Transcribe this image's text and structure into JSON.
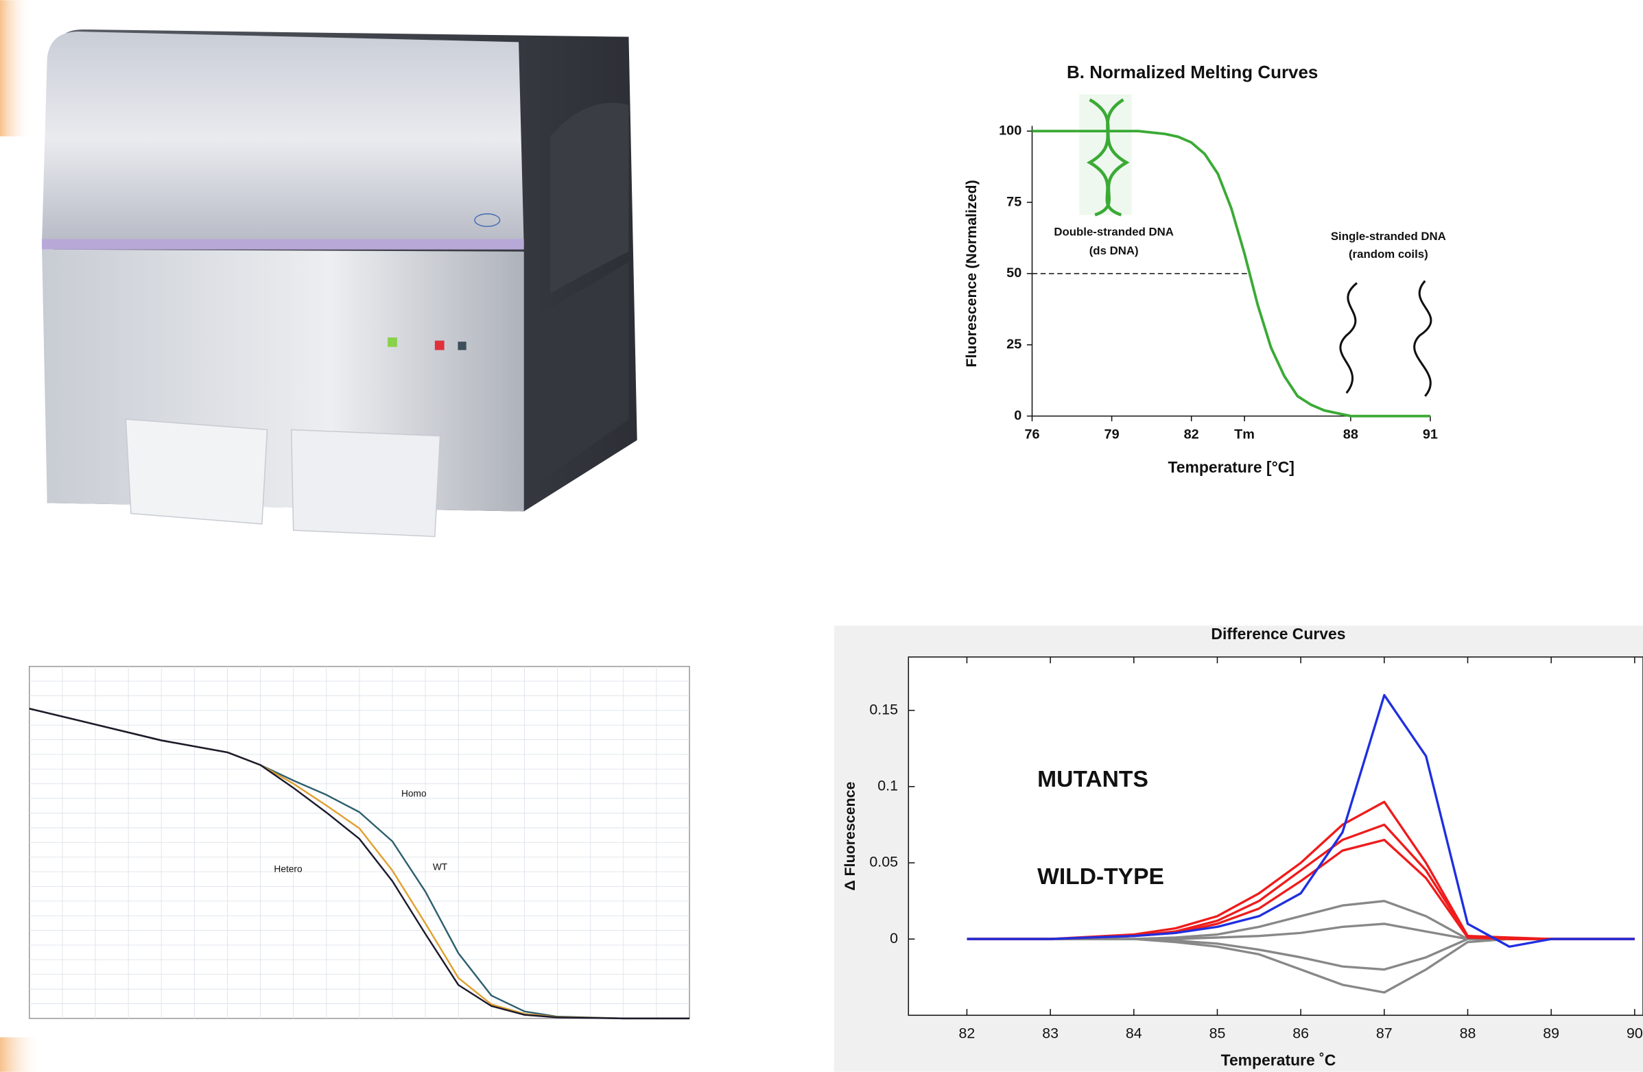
{
  "chart_data": [
    {
      "type": "line",
      "title": "B.  Normalized Melting Curves",
      "y_label": "Fluorescence (Normalized)",
      "x_label": "Temperature  [°C]",
      "x": [
        76,
        77,
        78,
        79,
        80,
        81,
        81.5,
        82,
        82.5,
        83,
        83.5,
        84,
        84.5,
        85,
        85.5,
        86,
        86.5,
        87,
        87.5,
        88,
        89,
        90,
        91
      ],
      "series": [
        {
          "color": "#3aaa35",
          "values": [
            100,
            100,
            100,
            100,
            100,
            99,
            98,
            96,
            92,
            85,
            73,
            57,
            39,
            24,
            14,
            7,
            4,
            2,
            1,
            0,
            0,
            0,
            0
          ]
        }
      ],
      "xlim": [
        76,
        91
      ],
      "ylim": [
        0,
        100
      ],
      "xticks": [
        76,
        79,
        82,
        {
          "value": 84,
          "label": "Tm"
        },
        88,
        91
      ],
      "yticks": [
        0,
        25,
        50,
        75,
        100
      ],
      "reference_line": 50,
      "annotations": [
        "Double-stranded DNA",
        "(ds DNA)",
        "Single-stranded DNA",
        "(random coils)"
      ]
    },
    {
      "type": "line",
      "x": [
        0,
        10,
        20,
        30,
        35,
        40,
        45,
        50,
        55,
        60,
        65,
        70,
        75,
        80,
        90,
        100
      ],
      "series": [
        {
          "color": "#2d5f6e",
          "values": [
            88,
            83.5,
            79,
            75.6,
            72,
            67.6,
            63.5,
            58.6,
            50.3,
            36,
            18.5,
            6.5,
            2,
            0.5,
            0,
            0
          ]
        },
        {
          "color": "#e0a030",
          "values": [
            88,
            83.5,
            79,
            75.6,
            72,
            66.7,
            60.5,
            54,
            42,
            27,
            11.5,
            4,
            1.3,
            0.4,
            0,
            0
          ]
        },
        {
          "color": "#1a1a2e",
          "values": [
            88,
            83.5,
            79,
            75.6,
            72,
            65.5,
            58.5,
            51,
            39,
            24,
            9.5,
            3.5,
            1,
            0.3,
            0,
            0
          ]
        }
      ],
      "xlim": [
        0,
        100
      ],
      "ylim": [
        0,
        100
      ],
      "grid": true,
      "annotations": [
        "Homo",
        "Hetero",
        "WT"
      ]
    },
    {
      "type": "line",
      "title": "Difference Curves",
      "y_label": "Δ Fluorescence",
      "x_label": "Temperature ˚C",
      "x": [
        82,
        83,
        84,
        84.5,
        85,
        85.5,
        86,
        86.5,
        87,
        87.5,
        88,
        88.5,
        89,
        90
      ],
      "series": [
        {
          "color": "#888888",
          "values": [
            0,
            0,
            0,
            0.001,
            0.003,
            0.008,
            0.015,
            0.022,
            0.025,
            0.015,
            0,
            0,
            0,
            0
          ]
        },
        {
          "color": "#888888",
          "values": [
            0,
            0,
            0,
            0,
            0.001,
            0.002,
            0.004,
            0.008,
            0.01,
            0.005,
            0,
            0,
            0,
            0
          ]
        },
        {
          "color": "#888888",
          "values": [
            0,
            0,
            0,
            -0.001,
            -0.003,
            -0.007,
            -0.012,
            -0.018,
            -0.02,
            -0.012,
            0,
            0,
            0,
            0
          ]
        },
        {
          "color": "#888888",
          "values": [
            0,
            0,
            0,
            -0.002,
            -0.005,
            -0.01,
            -0.02,
            -0.03,
            -0.035,
            -0.02,
            -0.002,
            0,
            0,
            0
          ]
        },
        {
          "color": "#ee1c1c",
          "values": [
            0,
            0,
            0.003,
            0.007,
            0.015,
            0.03,
            0.05,
            0.075,
            0.09,
            0.05,
            0.002,
            0.001,
            0,
            0
          ]
        },
        {
          "color": "#ee1c1c",
          "values": [
            0,
            0,
            0.002,
            0.005,
            0.012,
            0.025,
            0.045,
            0.065,
            0.075,
            0.045,
            0.002,
            0,
            0,
            0
          ]
        },
        {
          "color": "#ee1c1c",
          "values": [
            0,
            0,
            0.002,
            0.004,
            0.01,
            0.02,
            0.038,
            0.058,
            0.065,
            0.04,
            0.001,
            0,
            0,
            0
          ]
        },
        {
          "color": "#1f2fe0",
          "values": [
            0,
            0,
            0.002,
            0.004,
            0.008,
            0.015,
            0.03,
            0.07,
            0.16,
            0.12,
            0.01,
            -0.005,
            0,
            0
          ]
        }
      ],
      "xlim": [
        81.3,
        90.1
      ],
      "ylim": [
        -0.05,
        0.185
      ],
      "xticks": [
        82,
        83,
        84,
        85,
        86,
        87,
        88,
        89,
        90
      ],
      "yticks": [
        0,
        0.05,
        0.1,
        0.15
      ],
      "annotations": [
        "MUTANTS",
        "WILD-TYPE"
      ]
    }
  ]
}
